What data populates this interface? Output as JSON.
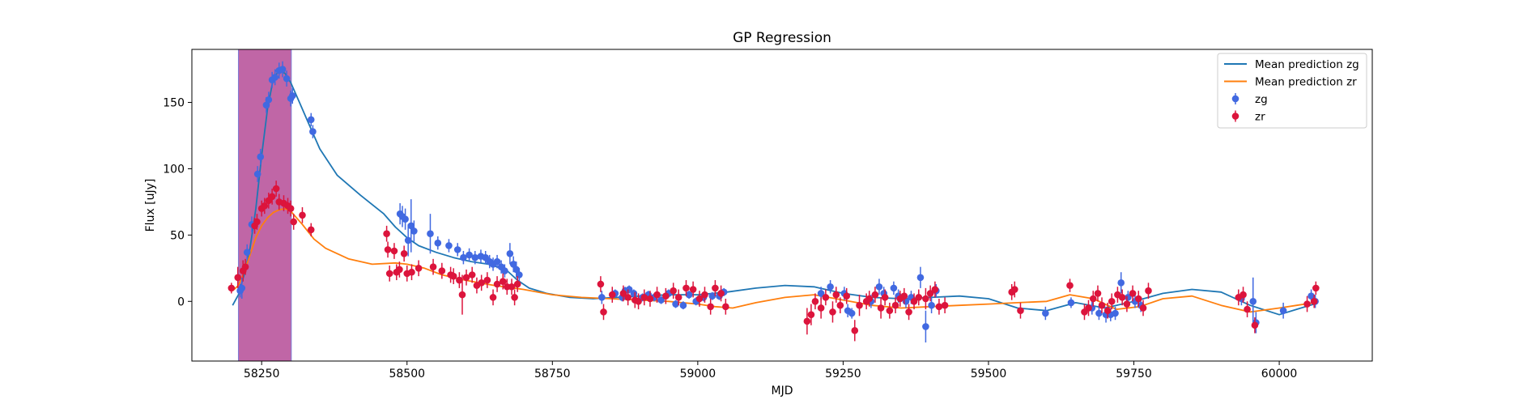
{
  "chart_data": {
    "type": "scatter",
    "title": "GP Regression",
    "xlabel": "MJD",
    "ylabel": "Flux [uJy]",
    "xlim": [
      58130,
      60160
    ],
    "ylim": [
      -45,
      190
    ],
    "xticks": [
      58250,
      58500,
      58750,
      59000,
      59250,
      59500,
      59750,
      60000
    ],
    "yticks": [
      0,
      50,
      100,
      150
    ],
    "legend_position": "top-right",
    "grid": false,
    "highlight_span": {
      "x": [
        58210,
        58301
      ],
      "color": "#c066a6",
      "edge_color": "#7b7bd6"
    },
    "series": [
      {
        "name": "Mean prediction zg",
        "kind": "line",
        "color": "#1f77b4",
        "x": [
          58200,
          58210,
          58220,
          58230,
          58240,
          58250,
          58260,
          58270,
          58280,
          58290,
          58300,
          58315,
          58330,
          58350,
          58380,
          58420,
          58460,
          58480,
          58500,
          58520,
          58550,
          58580,
          58610,
          58640,
          58670,
          58690,
          58710,
          58740,
          58780,
          58820,
          58860,
          58900,
          58950,
          59000,
          59050,
          59100,
          59150,
          59200,
          59250,
          59300,
          59350,
          59400,
          59450,
          59500,
          59550,
          59600,
          59650,
          59700,
          59750,
          59800,
          59850,
          59900,
          59950,
          60000,
          60030,
          60060
        ],
        "y": [
          -3,
          5,
          20,
          40,
          70,
          110,
          145,
          168,
          174,
          172,
          165,
          150,
          135,
          115,
          95,
          80,
          66,
          56,
          48,
          42,
          37,
          33,
          30,
          28,
          24,
          16,
          10,
          6,
          3,
          2,
          3,
          4,
          5,
          5,
          7,
          10,
          12,
          11,
          6,
          3,
          2,
          3,
          4,
          2,
          -5,
          -7,
          -1,
          -5,
          0,
          6,
          9,
          7,
          -3,
          -10,
          -6,
          -2
        ]
      },
      {
        "name": "Mean prediction zr",
        "kind": "line",
        "color": "#ff7f0e",
        "x": [
          58200,
          58210,
          58220,
          58230,
          58240,
          58250,
          58260,
          58270,
          58280,
          58290,
          58300,
          58320,
          58340,
          58360,
          58400,
          58440,
          58480,
          58500,
          58530,
          58560,
          58600,
          58650,
          58700,
          58750,
          58800,
          58850,
          58900,
          58950,
          59000,
          59030,
          59060,
          59100,
          59150,
          59200,
          59250,
          59300,
          59350,
          59400,
          59450,
          59500,
          59550,
          59600,
          59640,
          59680,
          59720,
          59760,
          59800,
          59850,
          59900,
          59950,
          60000,
          60030,
          60060
        ],
        "y": [
          8,
          12,
          22,
          35,
          48,
          57,
          63,
          67,
          69,
          70,
          68,
          58,
          47,
          40,
          32,
          28,
          29,
          28,
          25,
          20,
          16,
          12,
          9,
          5,
          3,
          2,
          1,
          0,
          -2,
          -4,
          -5,
          -1,
          3,
          5,
          1,
          -3,
          -5,
          -4,
          -3,
          -2,
          -1,
          0,
          5,
          2,
          -6,
          -4,
          2,
          4,
          -3,
          -8,
          -5,
          -3,
          -1
        ]
      },
      {
        "name": "zg",
        "kind": "errorbar",
        "color": "#4169e1",
        "x": [
          58213,
          58216,
          58225,
          58233,
          58243,
          58248,
          58258,
          58262,
          58268,
          58273,
          58280,
          58286,
          58293,
          58300,
          58303,
          58335,
          58338,
          58488,
          58492,
          58497,
          58502,
          58507,
          58512,
          58540,
          58553,
          58572,
          58587,
          58597,
          58607,
          58617,
          58627,
          58635,
          58642,
          58648,
          58655,
          58662,
          58668,
          58677,
          58683,
          58688,
          58693,
          58835,
          58858,
          58870,
          58875,
          58882,
          58890,
          58905,
          58915,
          58925,
          58937,
          58950,
          58962,
          58975,
          58985,
          58997,
          59010,
          59025,
          59037,
          59045,
          59212,
          59228,
          59252,
          59258,
          59265,
          59298,
          59312,
          59320,
          59337,
          59345,
          59358,
          59367,
          59383,
          59392,
          59402,
          59410,
          59598,
          59642,
          59678,
          59690,
          59702,
          59710,
          59718,
          59728,
          59740,
          59752,
          59762,
          59935,
          59955,
          59960,
          60007,
          60055,
          60062
        ],
        "y": [
          8,
          10,
          37,
          58,
          96,
          109,
          148,
          152,
          167,
          169,
          174,
          175,
          168,
          153,
          155,
          137,
          128,
          66,
          64,
          62,
          46,
          57,
          53,
          51,
          44,
          42,
          39,
          33,
          35,
          33,
          34,
          33,
          30,
          28,
          30,
          26,
          23,
          36,
          28,
          24,
          20,
          3,
          6,
          3,
          8,
          9,
          6,
          3,
          5,
          3,
          1,
          6,
          -2,
          -3,
          5,
          0,
          3,
          4,
          4,
          7,
          6,
          11,
          6,
          -7,
          -9,
          0,
          11,
          6,
          10,
          4,
          0,
          3,
          18,
          -19,
          -3,
          8,
          -9,
          -1,
          -5,
          -9,
          -10,
          -10,
          -9,
          14,
          3,
          0,
          -3,
          2,
          0,
          -16,
          -7,
          4,
          0
        ],
        "err": [
          5,
          8,
          6,
          6,
          6,
          6,
          6,
          6,
          6,
          6,
          6,
          6,
          6,
          6,
          6,
          5,
          5,
          8,
          8,
          8,
          12,
          20,
          8,
          15,
          5,
          5,
          5,
          5,
          5,
          5,
          5,
          5,
          5,
          5,
          5,
          5,
          5,
          8,
          6,
          6,
          5,
          5,
          3,
          3,
          3,
          3,
          3,
          3,
          3,
          3,
          3,
          3,
          3,
          3,
          3,
          3,
          3,
          3,
          3,
          3,
          5,
          5,
          5,
          5,
          4,
          5,
          6,
          5,
          5,
          5,
          5,
          5,
          8,
          12,
          6,
          5,
          5,
          4,
          5,
          5,
          6,
          5,
          5,
          8,
          5,
          5,
          5,
          5,
          18,
          8,
          6,
          5,
          5
        ]
      },
      {
        "name": "zr",
        "kind": "errorbar",
        "color": "#dc143c",
        "x": [
          58198,
          58209,
          58218,
          58222,
          58238,
          58242,
          58250,
          58255,
          58262,
          58268,
          58275,
          58280,
          58288,
          58295,
          58300,
          58305,
          58320,
          58335,
          58465,
          58467,
          58470,
          58478,
          58482,
          58487,
          58495,
          58500,
          58508,
          58520,
          58545,
          58560,
          58575,
          58580,
          58590,
          58595,
          58602,
          58612,
          58620,
          58628,
          58638,
          58648,
          58655,
          58665,
          58672,
          58680,
          58685,
          58690,
          58833,
          58838,
          58853,
          58872,
          58880,
          58892,
          58898,
          58908,
          58918,
          58930,
          58945,
          58958,
          58967,
          58980,
          58992,
          59003,
          59012,
          59022,
          59030,
          59040,
          59048,
          59188,
          59195,
          59202,
          59212,
          59220,
          59232,
          59238,
          59245,
          59256,
          59270,
          59278,
          59290,
          59295,
          59305,
          59315,
          59322,
          59330,
          59340,
          59348,
          59355,
          59363,
          59372,
          59380,
          59392,
          59400,
          59408,
          59415,
          59425,
          59540,
          59545,
          59555,
          59640,
          59665,
          59672,
          59680,
          59688,
          59695,
          59705,
          59712,
          59722,
          59730,
          59738,
          59748,
          59758,
          59766,
          59775,
          59930,
          59938,
          59945,
          59958,
          60048,
          60060,
          60063
        ],
        "y": [
          10,
          18,
          23,
          26,
          57,
          60,
          70,
          72,
          76,
          79,
          85,
          75,
          74,
          72,
          70,
          60,
          65,
          54,
          51,
          39,
          21,
          38,
          22,
          24,
          36,
          21,
          22,
          25,
          26,
          23,
          20,
          19,
          16,
          5,
          18,
          20,
          12,
          14,
          16,
          3,
          13,
          15,
          11,
          11,
          3,
          13,
          13,
          -8,
          5,
          6,
          3,
          1,
          0,
          3,
          2,
          5,
          4,
          8,
          3,
          10,
          9,
          2,
          5,
          -4,
          10,
          6,
          -4,
          -15,
          -10,
          0,
          -5,
          3,
          -8,
          5,
          -3,
          4,
          -22,
          -3,
          0,
          2,
          5,
          -5,
          3,
          -7,
          -3,
          2,
          4,
          -8,
          0,
          3,
          2,
          6,
          9,
          -4,
          -3,
          7,
          9,
          -7,
          12,
          -8,
          -5,
          2,
          6,
          -3,
          -7,
          0,
          5,
          3,
          -2,
          6,
          2,
          -5,
          8,
          3,
          5,
          -6,
          -18,
          -2,
          0,
          10
        ],
        "err": [
          4,
          8,
          8,
          6,
          6,
          6,
          6,
          6,
          6,
          6,
          6,
          6,
          6,
          6,
          6,
          6,
          6,
          5,
          6,
          6,
          6,
          6,
          6,
          6,
          6,
          6,
          6,
          6,
          6,
          6,
          6,
          6,
          6,
          15,
          6,
          6,
          6,
          6,
          6,
          6,
          6,
          6,
          6,
          6,
          6,
          6,
          6,
          6,
          6,
          6,
          6,
          6,
          6,
          6,
          6,
          6,
          6,
          6,
          6,
          6,
          6,
          6,
          6,
          6,
          6,
          6,
          6,
          10,
          8,
          6,
          8,
          6,
          8,
          6,
          6,
          6,
          8,
          8,
          6,
          6,
          6,
          8,
          6,
          6,
          6,
          6,
          6,
          6,
          6,
          6,
          8,
          6,
          6,
          6,
          6,
          6,
          6,
          6,
          5,
          6,
          6,
          6,
          6,
          6,
          6,
          6,
          6,
          6,
          6,
          6,
          6,
          6,
          6,
          6,
          6,
          6,
          6,
          6,
          5,
          5
        ]
      }
    ]
  }
}
